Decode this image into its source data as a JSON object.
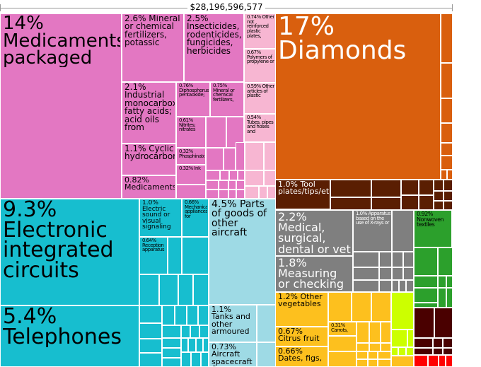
{
  "chart_data": {
    "type": "treemap",
    "total_label": "$28,196,596,577",
    "colors": {
      "pink": "#e377c2",
      "pink_light": "#f7b6d2",
      "cyan": "#17becf",
      "cyan_light": "#9edae5",
      "orange": "#d95f0e",
      "darkbrown": "#5a1e02",
      "gray": "#7f7f7f",
      "yellow": "#fdc01e",
      "lime": "#ccff00",
      "green": "#2ca02c",
      "darkred": "#4a0000",
      "red": "#ff0000"
    },
    "cells": [
      {
        "label": "14%\nMedicaments,\npackaged",
        "value": 14,
        "color": "pink"
      },
      {
        "label": "2.6% Mineral or chemical fertilizers, potassic",
        "value": 2.6,
        "color": "pink"
      },
      {
        "label": "2.5% Insecticides, rodenticides, fungicides, herbicides",
        "value": 2.5,
        "color": "pink"
      },
      {
        "label": "0.74% Other not reinforced plastic plates,",
        "value": 0.74,
        "color": "pink_light"
      },
      {
        "label": "0.67% Polymers of propylene or",
        "value": 0.67,
        "color": "pink_light"
      },
      {
        "label": "0.59% Other articles of plastic",
        "value": 0.59,
        "color": "pink_light"
      },
      {
        "label": "0.54% Tubes, pipes and hoses and",
        "value": 0.54,
        "color": "pink_light"
      },
      {
        "label": "2.1% Industrial monocarboxylic fatty acids; acid oils from",
        "value": 2.1,
        "color": "pink"
      },
      {
        "label": "0.76% Diphosphorus pentaoxide;",
        "value": 0.76,
        "color": "pink"
      },
      {
        "label": "0.75% Mineral or chemical fertilizers,",
        "value": 0.75,
        "color": "pink"
      },
      {
        "label": "0.61% Nitrites; nitrates",
        "value": 0.61,
        "color": "pink"
      },
      {
        "label": "0.32% Phosphinates",
        "value": 0.32,
        "color": "pink"
      },
      {
        "label": "0.32% Ink",
        "value": 0.32,
        "color": "pink"
      },
      {
        "label": "1.1% Cyclic hydrocarbons",
        "value": 1.1,
        "color": "pink"
      },
      {
        "label": "0.82% Medicaments",
        "value": 0.82,
        "color": "pink"
      },
      {
        "label": "17% Diamonds",
        "value": 17,
        "color": "orange"
      },
      {
        "label": "1.0% Tool plates/tips/etc",
        "value": 1.0,
        "color": "darkbrown"
      },
      {
        "label": "9.3%\nElectronic\nintegrated\ncircuits",
        "value": 9.3,
        "color": "cyan"
      },
      {
        "label": "5.4%\nTelephones",
        "value": 5.4,
        "color": "cyan"
      },
      {
        "label": "1.0% Electric sound or visual signaling",
        "value": 1.0,
        "color": "cyan"
      },
      {
        "label": "0.66% Mechanical appliances for",
        "value": 0.66,
        "color": "cyan"
      },
      {
        "label": "0.64% Reception apparatus",
        "value": 0.64,
        "color": "cyan"
      },
      {
        "label": "4.5% Parts of goods of other aircraft",
        "value": 4.5,
        "color": "cyan_light"
      },
      {
        "label": "1.1% Tanks and other armoured",
        "value": 1.1,
        "color": "cyan_light"
      },
      {
        "label": "0.73% Aircraft spacecraft &",
        "value": 0.73,
        "color": "cyan_light"
      },
      {
        "label": "2.2% Medical, surgical, dental or vet",
        "value": 2.2,
        "color": "gray"
      },
      {
        "label": "1.0% Apparatus based on the use of X-rays or",
        "value": 1.0,
        "color": "gray"
      },
      {
        "label": "1.8% Measuring or checking",
        "value": 1.8,
        "color": "gray"
      },
      {
        "label": "0.92% Nonwoven textiles",
        "value": 0.92,
        "color": "green"
      },
      {
        "label": "1.2% Other vegetables",
        "value": 1.2,
        "color": "yellow"
      },
      {
        "label": "0.31% Carrots,",
        "value": 0.31,
        "color": "yellow"
      },
      {
        "label": "0.67% Citrus fruit",
        "value": 0.67,
        "color": "yellow"
      },
      {
        "label": "0.66% Dates, figs,",
        "value": 0.66,
        "color": "yellow"
      },
      {
        "label": "",
        "value": 0,
        "color": "pink_light"
      },
      {
        "label": "",
        "value": 0,
        "color": "pink"
      },
      {
        "label": "",
        "value": 0,
        "color": "orange"
      },
      {
        "label": "",
        "value": 0,
        "color": "darkbrown"
      },
      {
        "label": "",
        "value": 0,
        "color": "cyan"
      },
      {
        "label": "",
        "value": 0,
        "color": "gray"
      },
      {
        "label": "",
        "value": 0,
        "color": "yellow"
      },
      {
        "label": "",
        "value": 0,
        "color": "lime"
      },
      {
        "label": "",
        "value": 0,
        "color": "green"
      },
      {
        "label": "",
        "value": 0,
        "color": "darkred"
      },
      {
        "label": "",
        "value": 0,
        "color": "red"
      }
    ]
  }
}
